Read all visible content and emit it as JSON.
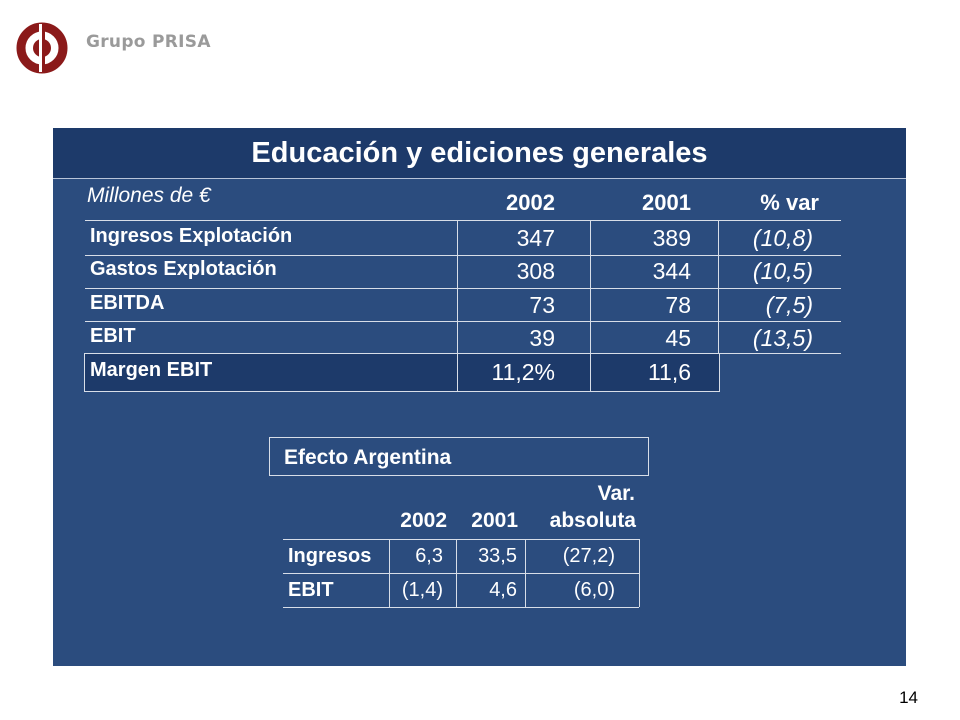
{
  "brand": {
    "name": "Grupo PRISA"
  },
  "slide": {
    "title": "Educación y ediciones generales",
    "units": "Millones de €",
    "columns": [
      "2002",
      "2001",
      "% var"
    ],
    "rows": [
      {
        "label": "Ingresos Explotación",
        "v2002": "347",
        "v2001": "389",
        "var": "(10,8)"
      },
      {
        "label": "Gastos Explotación",
        "v2002": "308",
        "v2001": "344",
        "var": "(10,5)"
      },
      {
        "label": "EBITDA",
        "v2002": "73",
        "v2001": "78",
        "var": "(7,5)"
      },
      {
        "label": "EBIT",
        "v2002": "39",
        "v2001": "45",
        "var": "(13,5)"
      }
    ],
    "margin": {
      "label": "Margen EBIT",
      "v2002": "11,2%",
      "v2001": "11,6"
    }
  },
  "argentina": {
    "title": "Efecto Argentina",
    "columns": [
      "2002",
      "2001",
      "Var.",
      "absoluta"
    ],
    "rows": [
      {
        "label": "Ingresos",
        "v2002": "6,3",
        "v2001": "33,5",
        "var": "(27,2)"
      },
      {
        "label": "EBIT",
        "v2002": "(1,4)",
        "v2001": "4,6",
        "var": "(6,0)"
      }
    ]
  },
  "page_number": "14",
  "colors": {
    "panel": "#2b4c7e",
    "title_bar": "#1d3a6a",
    "logo": "#8b1a1a",
    "brand_text": "#9a9a9a"
  }
}
